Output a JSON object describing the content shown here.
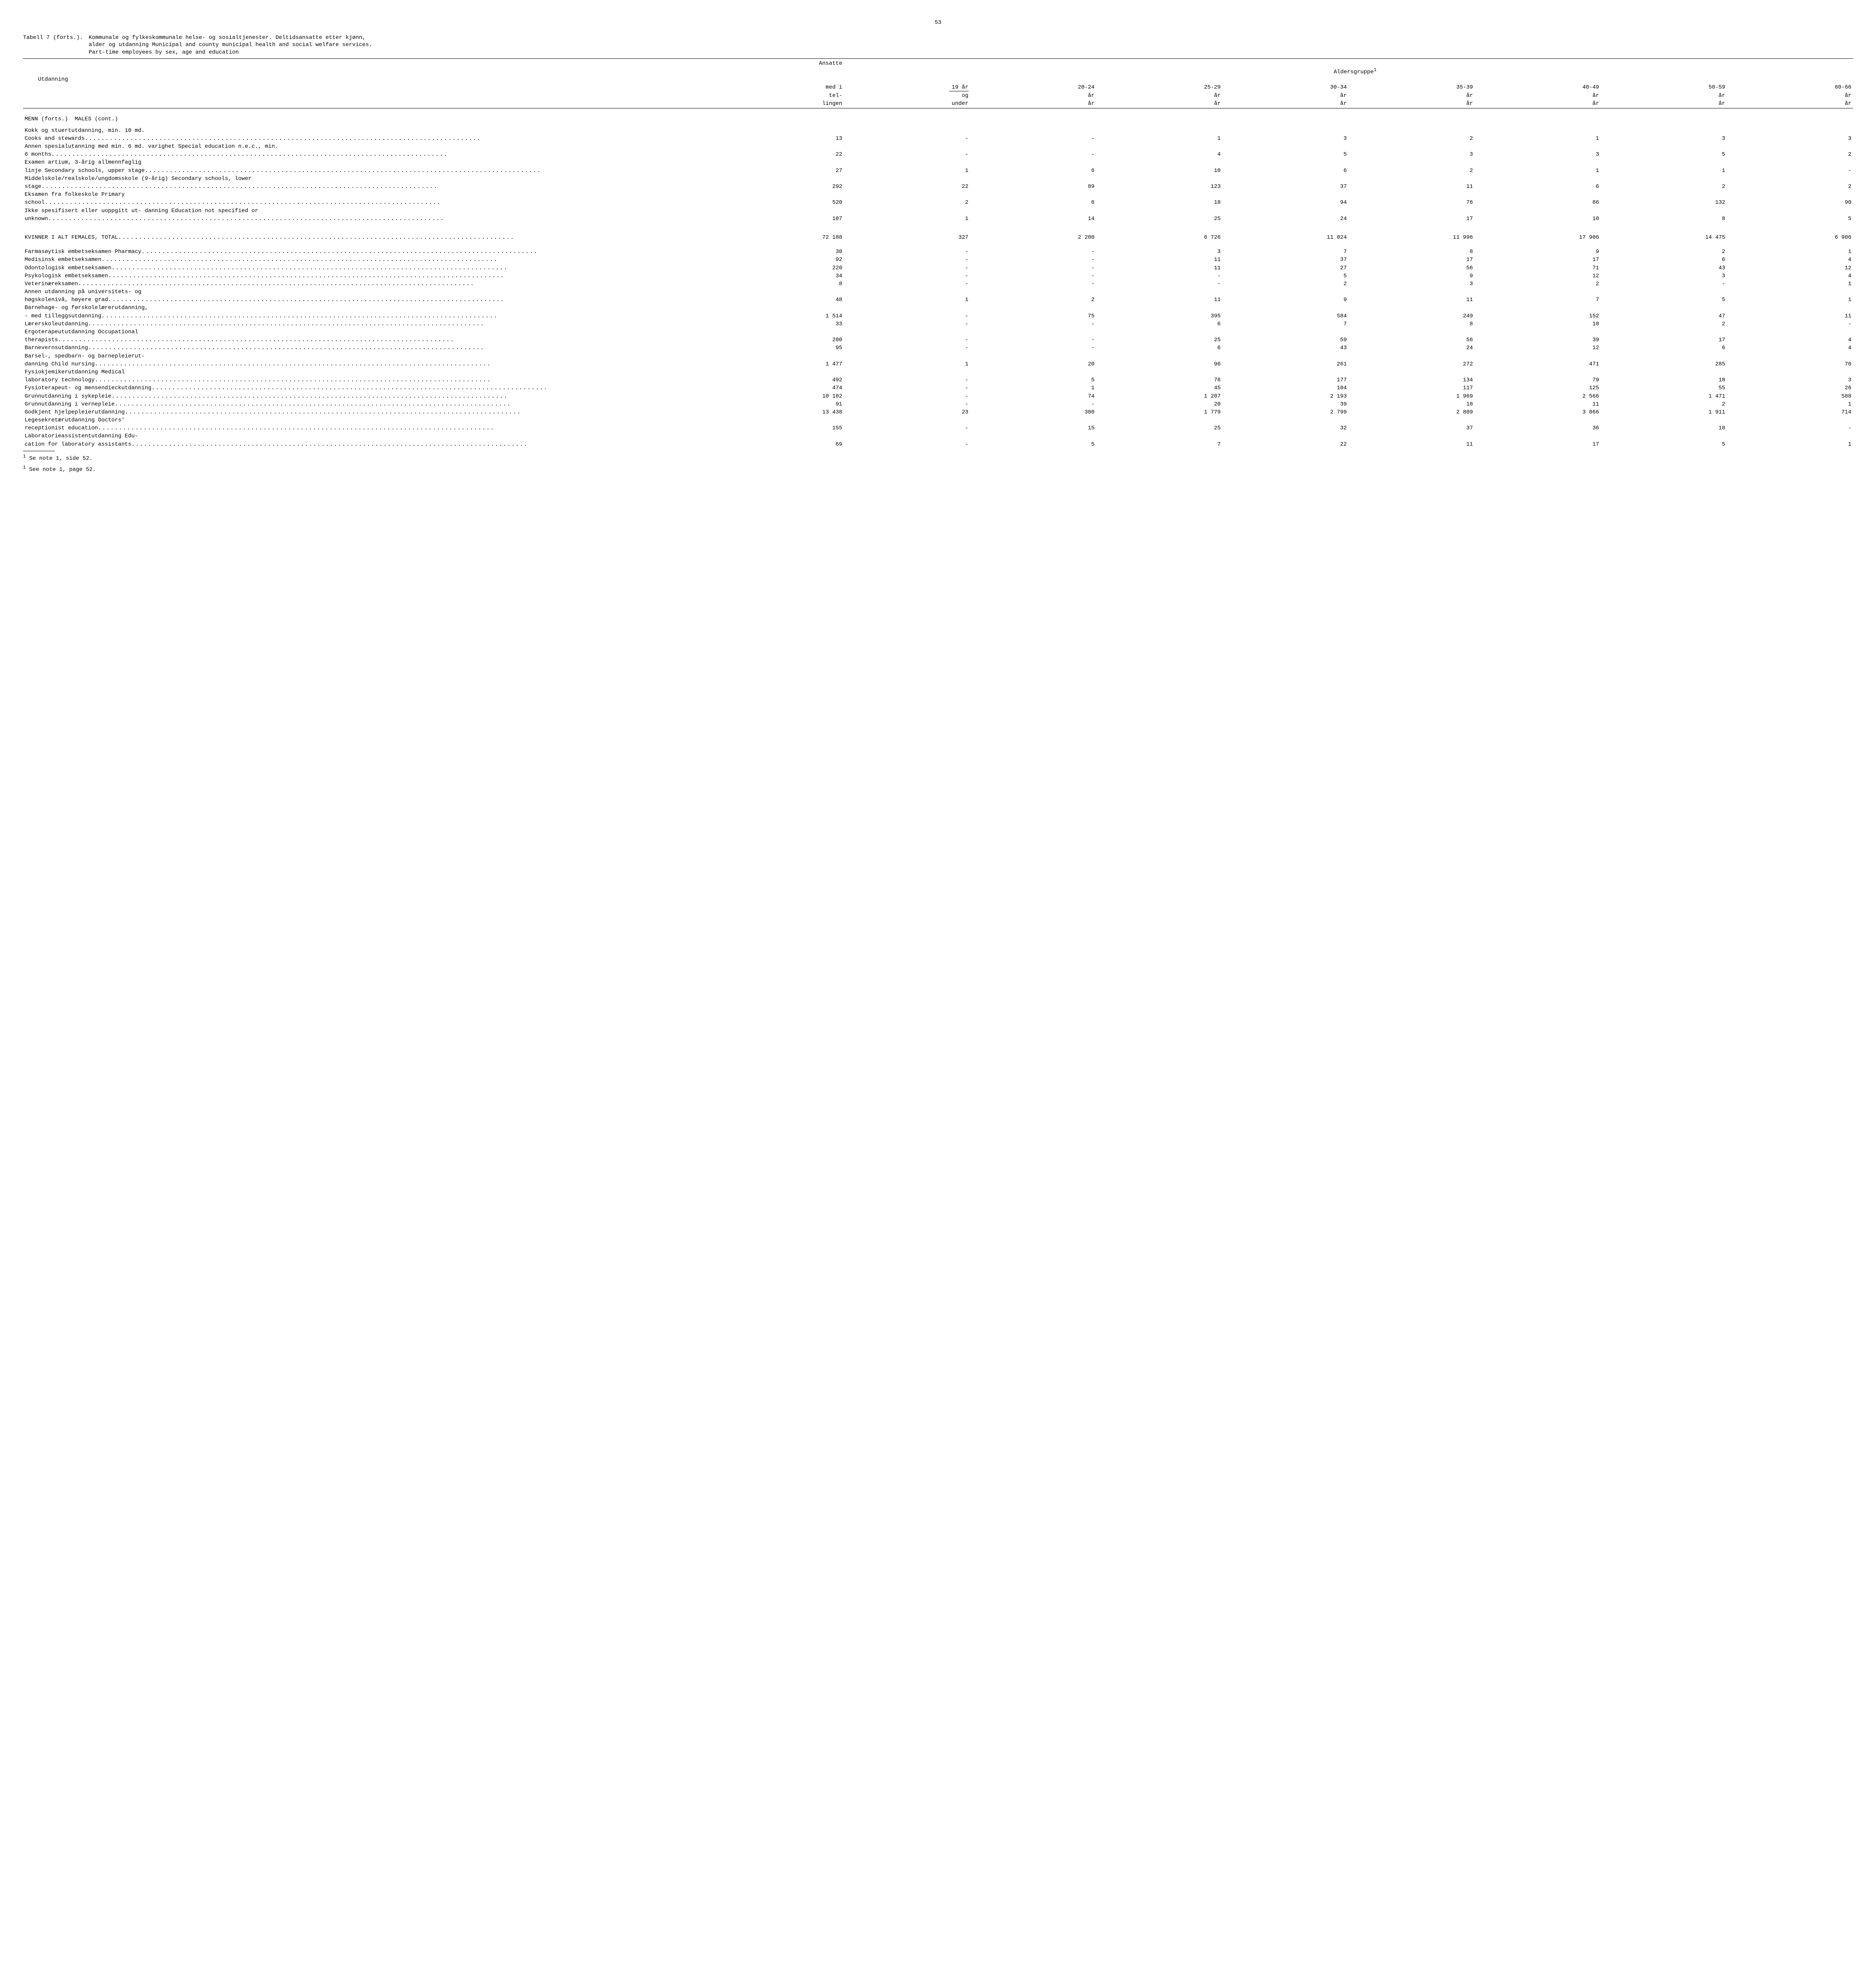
{
  "page_number": "53",
  "title_prefix": "Tabell 7 (forts.).",
  "title_body_line1": "Kommunale og fylkeskommunale helse- og sosialtjenester.  Deltidsansatte etter kjønn,",
  "title_body_line2": "alder og utdanning   Municipal and county municipal health and social welfare services.",
  "title_body_line3": "Part-time employees by sex, age and education",
  "colhead": {
    "utdanning": "Utdanning",
    "ansatte1": "Ansatte",
    "ansatte2": "med i",
    "ansatte3": "tel-",
    "ansatte4": "lingen",
    "alders": "Aldersgruppe",
    "alders_sup": "1",
    "c1a": "19 år",
    "c1b": "og",
    "c1c": "under",
    "c2a": "20-24",
    "c2b": "år",
    "c3a": "25-29",
    "c3b": "år",
    "c4a": "30-34",
    "c4b": "år",
    "c5a": "35-39",
    "c5b": "år",
    "c6a": "40-49",
    "c6b": "år",
    "c7a": "50-59",
    "c7b": "år",
    "c8a": "60-66",
    "c8b": "år"
  },
  "section_males": "MENN (forts.)  MALES (cont.)",
  "section_females": "KVINNER I ALT  FEMALES, TOTAL",
  "rows_m": [
    {
      "pre": "Kokk og stuertutdanning, min. 10 md.",
      "lbl": "Cooks and stewards",
      "v": [
        "13",
        "-",
        "-",
        "1",
        "3",
        "2",
        "1",
        "3",
        "3"
      ]
    },
    {
      "pre": "Annen spesialutanning med min. 6 md. varighet  Special education n.e.c., min.",
      "lbl": "6 months",
      "v": [
        "22",
        "-",
        "-",
        "4",
        "5",
        "3",
        "3",
        "5",
        "2"
      ]
    },
    {
      "pre": "Examen artium, 3-årig allmennfaglig",
      "lbl": "linje   Secondary schools, upper stage",
      "v": [
        "27",
        "1",
        "6",
        "10",
        "6",
        "2",
        "1",
        "1",
        "-"
      ]
    },
    {
      "pre": "Middelskole/realskole/ungdomsskole (9-årig)  Secondary schools, lower",
      "lbl": "stage",
      "v": [
        "292",
        "22",
        "89",
        "123",
        "37",
        "11",
        "6",
        "2",
        "2"
      ]
    },
    {
      "pre": "Eksamen fra folkeskole  Primary",
      "lbl": "school",
      "v": [
        "520",
        "2",
        "6",
        "18",
        "94",
        "76",
        "86",
        "132",
        "90"
      ]
    },
    {
      "pre": "Ikke spesifisert eller uoppgitt ut- danning   Education not specified or",
      "lbl": "unknown",
      "v": [
        "107",
        "1",
        "14",
        "25",
        "24",
        "17",
        "10",
        "8",
        "5"
      ]
    }
  ],
  "females_total": {
    "v": [
      "72 188",
      "327",
      "2 200",
      "6 726",
      "11 024",
      "11 996",
      "17 906",
      "14 475",
      "6 906"
    ]
  },
  "rows_f": [
    {
      "lbl": "Farmasøytisk embetseksamen  Pharmacy",
      "v": [
        "30",
        "-",
        "-",
        "3",
        "7",
        "8",
        "9",
        "2",
        "1"
      ]
    },
    {
      "lbl": "Medisinsk embetseksamen",
      "v": [
        "92",
        "-",
        "-",
        "11",
        "37",
        "17",
        "17",
        "6",
        "4"
      ]
    },
    {
      "lbl": "Odontologisk embetseksamen",
      "v": [
        "220",
        "-",
        "-",
        "11",
        "27",
        "56",
        "71",
        "43",
        "12"
      ]
    },
    {
      "lbl": "Psykologisk embetseksamen",
      "v": [
        "34",
        "-",
        "-",
        "-",
        "5",
        "9",
        "12",
        "3",
        "4"
      ]
    },
    {
      "lbl": "Veterinæreksamen",
      "v": [
        "8",
        "-",
        "-",
        "-",
        "2",
        "3",
        "2",
        "-",
        "1"
      ]
    },
    {
      "pre": "Annen utdanning på universitets- og",
      "lbl": "høgskolenivå, høyere grad",
      "v": [
        "48",
        "1",
        "2",
        "11",
        "9",
        "11",
        "7",
        "5",
        "1"
      ]
    },
    {
      "pre": "Barnehage- og førskolelærerutdanning,",
      "lbl": "- med tilleggsutdanning",
      "v": [
        "1 514",
        "-",
        "75",
        "395",
        "584",
        "249",
        "152",
        "47",
        "11"
      ]
    },
    {
      "lbl": "Lærerskoleutdanning",
      "v": [
        "33",
        "-",
        "-",
        "6",
        "7",
        "8",
        "10",
        "2",
        "-"
      ]
    },
    {
      "pre": "Ergoterapeututdanning  Occupational",
      "lbl": "therapists",
      "v": [
        "200",
        "-",
        "-",
        "25",
        "59",
        "56",
        "39",
        "17",
        "4"
      ]
    },
    {
      "lbl": "Barnevernsutdanning",
      "v": [
        "95",
        "-",
        "-",
        "6",
        "43",
        "24",
        "12",
        "6",
        "4"
      ]
    },
    {
      "pre": "Barsel-, spedbarn- og barnepleierut-",
      "lbl": "danning   Child nursing",
      "v": [
        "1 477",
        "1",
        "20",
        "96",
        "261",
        "272",
        "471",
        "285",
        "70"
      ]
    },
    {
      "pre": "Fysiokjemikerutdanning   Medical",
      "lbl": "laboratory technology",
      "v": [
        "492",
        "-",
        "5",
        "76",
        "177",
        "134",
        "79",
        "18",
        "3"
      ]
    },
    {
      "lbl": "Fysioterapeut- og mensendieckutdanning",
      "v": [
        "474",
        "-",
        "1",
        "45",
        "104",
        "117",
        "125",
        "55",
        "26"
      ]
    },
    {
      "lbl": "Grunnutdanning i sykepleie",
      "v": [
        "10 102",
        "-",
        "74",
        "1 207",
        "2 193",
        "1 969",
        "2 566",
        "1 471",
        "588"
      ]
    },
    {
      "lbl": "Grunnutdanning i vernepleie",
      "v": [
        "91",
        "-",
        "-",
        "20",
        "39",
        "18",
        "11",
        "2",
        "1"
      ]
    },
    {
      "lbl": "Godkjent hjelpepleierutdanning",
      "v": [
        "13 438",
        "23",
        "300",
        "1 779",
        "2 799",
        "2 809",
        "3 066",
        "1 911",
        "714"
      ]
    },
    {
      "pre": "Legesekretærutdanning   Doctors'",
      "lbl": "receptionist education",
      "v": [
        "155",
        "-",
        "15",
        "25",
        "32",
        "37",
        "36",
        "10",
        "-"
      ]
    },
    {
      "pre": "Laboratorieassistentutdanning   Edu-",
      "lbl": "cation for laboratory assistants",
      "v": [
        "69",
        "-",
        "5",
        "7",
        "22",
        "11",
        "17",
        "5",
        "1"
      ]
    }
  ],
  "footnote_sep": "———————",
  "footnote1": "Se note 1, side 52.",
  "footnote2": "See note 1, page 52.",
  "footnote_sup": "1"
}
